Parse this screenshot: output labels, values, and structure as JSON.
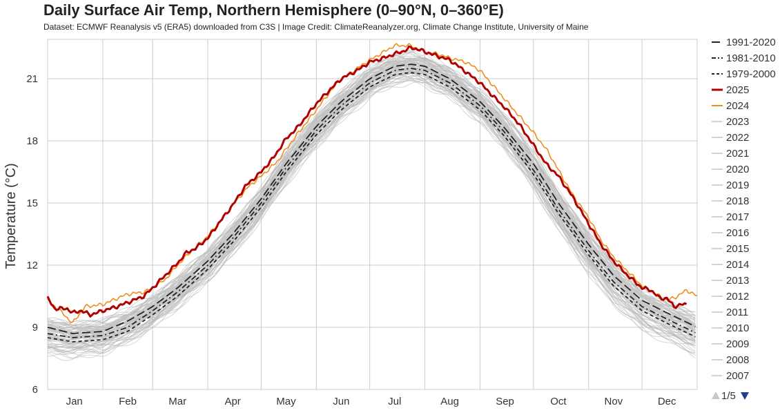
{
  "chart_data": {
    "type": "line",
    "title": "Daily Surface Air Temp, Northern Hemisphere (0–90°N, 0–360°E)",
    "subtitle": "Dataset: ECMWF Reanalysis v5 (ERA5) downloaded from C3S | Image Credit: ClimateReanalyzer.org, Climate Change Institute, University of Maine",
    "ylabel": "Temperature (°C)",
    "xlabel": "",
    "ylim": [
      6,
      22.9
    ],
    "xlim": [
      1,
      366
    ],
    "grid": true,
    "y_ticks": [
      6,
      9,
      12,
      15,
      18,
      21
    ],
    "x_ticks": [
      {
        "label": "Jan",
        "doy": 16
      },
      {
        "label": "Feb",
        "doy": 46
      },
      {
        "label": "Mar",
        "doy": 74
      },
      {
        "label": "Apr",
        "doy": 105
      },
      {
        "label": "May",
        "doy": 135
      },
      {
        "label": "Jun",
        "doy": 166
      },
      {
        "label": "Jul",
        "doy": 196
      },
      {
        "label": "Aug",
        "doy": 227
      },
      {
        "label": "Sep",
        "doy": 258
      },
      {
        "label": "Oct",
        "doy": 288
      },
      {
        "label": "Nov",
        "doy": 319
      },
      {
        "label": "Dec",
        "doy": 349
      }
    ],
    "month_boundaries_doy": [
      32,
      60,
      91,
      121,
      152,
      182,
      213,
      244,
      274,
      305,
      335
    ],
    "legend_position": "right",
    "legend_page": "1/5",
    "series": [
      {
        "name": "1991-2020",
        "style": "long-dash",
        "color": "#222222",
        "x": [
          1,
          15,
          32,
          46,
          60,
          74,
          91,
          105,
          121,
          135,
          152,
          166,
          182,
          196,
          205,
          213,
          227,
          244,
          258,
          274,
          288,
          305,
          319,
          335,
          349,
          366
        ],
        "y": [
          9.0,
          8.7,
          8.8,
          9.3,
          10.0,
          10.9,
          12.2,
          13.5,
          15.2,
          16.9,
          18.7,
          19.9,
          21.0,
          21.6,
          21.7,
          21.6,
          21.0,
          19.9,
          18.6,
          16.9,
          15.0,
          13.0,
          11.5,
          10.3,
          9.7,
          9.0
        ]
      },
      {
        "name": "1981-2010",
        "style": "dash-dot",
        "color": "#222222",
        "x": [
          1,
          15,
          32,
          46,
          60,
          74,
          91,
          105,
          121,
          135,
          152,
          166,
          182,
          196,
          205,
          213,
          227,
          244,
          258,
          274,
          288,
          305,
          319,
          335,
          349,
          366
        ],
        "y": [
          8.7,
          8.5,
          8.6,
          9.0,
          9.8,
          10.7,
          12.0,
          13.3,
          15.0,
          16.7,
          18.5,
          19.7,
          20.8,
          21.4,
          21.5,
          21.4,
          20.8,
          19.7,
          18.4,
          16.6,
          14.7,
          12.7,
          11.2,
          10.0,
          9.4,
          8.7
        ]
      },
      {
        "name": "1979-2000",
        "style": "short-dash",
        "color": "#222222",
        "x": [
          1,
          15,
          32,
          46,
          60,
          74,
          91,
          105,
          121,
          135,
          152,
          166,
          182,
          196,
          205,
          213,
          227,
          244,
          258,
          274,
          288,
          305,
          319,
          335,
          349,
          366
        ],
        "y": [
          8.5,
          8.3,
          8.4,
          8.8,
          9.6,
          10.5,
          11.8,
          13.1,
          14.8,
          16.5,
          18.3,
          19.5,
          20.6,
          21.2,
          21.3,
          21.2,
          20.6,
          19.5,
          18.2,
          16.4,
          14.5,
          12.5,
          11.0,
          9.8,
          9.2,
          8.5
        ]
      },
      {
        "name": "2025",
        "style": "solid-thick",
        "color": "#b00000",
        "x": [
          1,
          5,
          12,
          15,
          20,
          25,
          32,
          40,
          46,
          55,
          60,
          67,
          74,
          79,
          84,
          91,
          97,
          105,
          112,
          121,
          128,
          135,
          142,
          152,
          160,
          166,
          175,
          182,
          190,
          196,
          200,
          205,
          210,
          213,
          220,
          227,
          235,
          244,
          252,
          258,
          266,
          274,
          281,
          288,
          296,
          305,
          312,
          319,
          327,
          335,
          340,
          345,
          349,
          353,
          357,
          360
        ],
        "y": [
          10.4,
          9.9,
          9.9,
          9.7,
          9.8,
          9.6,
          9.8,
          10.0,
          10.2,
          10.5,
          10.9,
          11.5,
          12.1,
          12.6,
          12.8,
          13.3,
          14.0,
          14.9,
          15.8,
          16.5,
          17.2,
          18.1,
          18.7,
          19.8,
          20.5,
          21.0,
          21.4,
          21.8,
          22.0,
          22.2,
          22.3,
          22.5,
          22.4,
          22.3,
          22.1,
          21.9,
          21.4,
          20.8,
          20.1,
          19.6,
          18.8,
          17.8,
          16.9,
          16.3,
          15.3,
          14.0,
          13.0,
          12.2,
          11.5,
          10.9,
          10.8,
          10.4,
          10.4,
          10.0,
          10.1,
          10.1
        ]
      },
      {
        "name": "2024",
        "style": "solid",
        "color": "#f08c1e",
        "x": [
          1,
          8,
          15,
          22,
          32,
          40,
          46,
          55,
          60,
          67,
          74,
          82,
          91,
          105,
          114,
          121,
          130,
          135,
          142,
          152,
          160,
          166,
          175,
          182,
          190,
          196,
          205,
          213,
          220,
          227,
          236,
          244,
          252,
          258,
          266,
          274,
          282,
          288,
          296,
          305,
          312,
          319,
          327,
          335,
          343,
          349,
          355,
          360,
          364,
          366
        ],
        "y": [
          10.3,
          9.8,
          9.2,
          10.0,
          10.1,
          10.4,
          10.6,
          10.7,
          10.9,
          11.3,
          12.0,
          12.7,
          13.4,
          14.9,
          15.8,
          16.3,
          17.0,
          17.6,
          18.4,
          19.5,
          20.4,
          21.0,
          21.5,
          21.9,
          22.3,
          22.6,
          22.6,
          22.3,
          22.2,
          22.0,
          21.8,
          21.4,
          20.6,
          20.0,
          19.2,
          18.4,
          17.5,
          16.6,
          15.4,
          14.3,
          13.2,
          12.4,
          11.7,
          11.0,
          10.6,
          10.3,
          10.5,
          10.8,
          10.6,
          10.5
        ]
      },
      {
        "name": "2023",
        "style": "solid",
        "color": "#d3d3d3",
        "offset": 0.3
      },
      {
        "name": "2022",
        "style": "solid",
        "color": "#d3d3d3",
        "offset": 0.1
      },
      {
        "name": "2021",
        "style": "solid",
        "color": "#d3d3d3",
        "offset": 0.05
      },
      {
        "name": "2020",
        "style": "solid",
        "color": "#d3d3d3",
        "offset": 0.15
      },
      {
        "name": "2019",
        "style": "solid",
        "color": "#d3d3d3",
        "offset": 0.1
      },
      {
        "name": "2018",
        "style": "solid",
        "color": "#d3d3d3",
        "offset": 0.0
      },
      {
        "name": "2017",
        "style": "solid",
        "color": "#d3d3d3",
        "offset": 0.05
      },
      {
        "name": "2016",
        "style": "solid",
        "color": "#d3d3d3",
        "offset": 0.2
      },
      {
        "name": "2015",
        "style": "solid",
        "color": "#d3d3d3",
        "offset": 0.0
      },
      {
        "name": "2014",
        "style": "solid",
        "color": "#d3d3d3",
        "offset": -0.1
      },
      {
        "name": "2013",
        "style": "solid",
        "color": "#d3d3d3",
        "offset": -0.15
      },
      {
        "name": "2012",
        "style": "solid",
        "color": "#d3d3d3",
        "offset": -0.1
      },
      {
        "name": "2011",
        "style": "solid",
        "color": "#d3d3d3",
        "offset": -0.2
      },
      {
        "name": "2010",
        "style": "solid",
        "color": "#d3d3d3",
        "offset": -0.1
      },
      {
        "name": "2009",
        "style": "solid",
        "color": "#d3d3d3",
        "offset": -0.25
      },
      {
        "name": "2008",
        "style": "solid",
        "color": "#d3d3d3",
        "offset": -0.3
      },
      {
        "name": "2007",
        "style": "solid",
        "color": "#d3d3d3",
        "offset": -0.25
      }
    ],
    "background_years_note": "Gray lines: individual years 1940-2023, clustered around the climatology band",
    "background_band": {
      "x": [
        1,
        15,
        32,
        46,
        60,
        74,
        91,
        105,
        121,
        135,
        152,
        166,
        182,
        196,
        205,
        213,
        227,
        244,
        258,
        274,
        288,
        305,
        319,
        335,
        349,
        366
      ],
      "low": [
        7.8,
        7.6,
        7.8,
        8.3,
        9.1,
        10.0,
        11.3,
        12.6,
        14.3,
        16.0,
        17.8,
        19.1,
        20.2,
        20.8,
        20.9,
        20.8,
        20.2,
        19.0,
        17.7,
        15.8,
        13.8,
        11.7,
        10.2,
        9.0,
        8.4,
        7.7
      ],
      "high": [
        9.4,
        9.2,
        9.3,
        9.8,
        10.5,
        11.4,
        12.7,
        14.0,
        15.7,
        17.4,
        19.2,
        20.4,
        21.5,
        22.1,
        22.2,
        22.1,
        21.5,
        20.4,
        19.2,
        17.5,
        15.6,
        13.6,
        12.1,
        10.9,
        10.3,
        9.6
      ]
    }
  },
  "legend": {
    "nav_page": "1/5",
    "prev_icon": "triangle-up-icon",
    "next_icon": "triangle-down-icon",
    "nav_prev_color": "#c8c8c8",
    "nav_next_color": "#1f3f8f"
  }
}
